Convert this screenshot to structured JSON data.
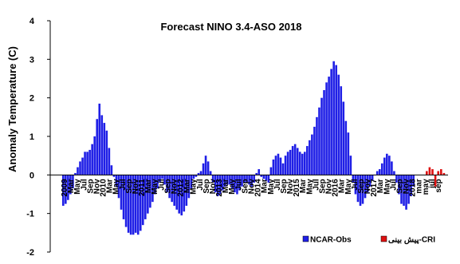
{
  "chart_data": {
    "type": "bar",
    "title": "Forecast NINO 3.4-ASO 2018",
    "xlabel": "",
    "ylabel": "Anomaly Temperature (C)",
    "ylim": [
      -2,
      4
    ],
    "yticks": [
      -2,
      -1,
      0,
      1,
      2,
      3,
      4
    ],
    "grid": false,
    "legend_position": "bottom-right",
    "colors": {
      "obs": "#1f1fe6",
      "forecast": "#dd1111",
      "obs_edge": "#0a0a8a",
      "axis": "#000000"
    },
    "x_tick_labels": [
      "2009",
      "Mar",
      "May",
      "Jul",
      "Sep",
      "Nov",
      "2010",
      "Mar",
      "May",
      "Jul",
      "Sep",
      "Nov",
      "2011",
      "Mar",
      "May",
      "Jul",
      "Sep",
      "Nov",
      "2012",
      "Mar",
      "May",
      "Jul",
      "Sep",
      "Nov",
      "2013",
      "Mar",
      "May",
      "Jul",
      "Sep",
      "Nov",
      "2014",
      "Mar",
      "May",
      "Jul",
      "Sep",
      "Nov",
      "2015",
      "Mar",
      "May",
      "Jul",
      "Sep",
      "Nov",
      "2016",
      "Mar",
      "May",
      "Jul",
      "Sep",
      "Nov",
      "2017",
      "Mar",
      "May",
      "Jul",
      "Sep",
      "Nov",
      "2018",
      "mar",
      "may",
      "jul",
      "sep"
    ],
    "series": [
      {
        "name": "NCAR-Obs",
        "values": [
          -0.8,
          -0.75,
          -0.65,
          -0.5,
          -0.35,
          0.05,
          0.2,
          0.35,
          0.45,
          0.6,
          0.6,
          0.65,
          0.8,
          1.0,
          1.45,
          1.85,
          1.55,
          1.35,
          1.15,
          0.7,
          0.25,
          -0.05,
          -0.3,
          -0.6,
          -0.9,
          -1.15,
          -1.35,
          -1.5,
          -1.55,
          -1.55,
          -1.5,
          -1.55,
          -1.45,
          -1.3,
          -1.15,
          -1.0,
          -0.85,
          -0.7,
          -0.5,
          -0.35,
          -0.2,
          -0.1,
          -0.25,
          -0.45,
          -0.6,
          -0.7,
          -0.8,
          -0.9,
          -1.0,
          -1.05,
          -0.95,
          -0.8,
          -0.6,
          -0.35,
          -0.1,
          -0.05,
          0.05,
          0.1,
          0.3,
          0.5,
          0.35,
          0.1,
          -0.2,
          -0.45,
          -0.55,
          -0.5,
          -0.4,
          -0.3,
          -0.25,
          -0.25,
          -0.35,
          -0.45,
          -0.5,
          -0.4,
          -0.3,
          -0.2,
          -0.2,
          -0.25,
          -0.3,
          -0.2,
          0.05,
          0.15,
          -0.05,
          -0.1,
          -0.15,
          -0.2,
          0.2,
          0.4,
          0.5,
          0.55,
          0.45,
          0.3,
          0.5,
          0.6,
          0.65,
          0.75,
          0.8,
          0.7,
          0.6,
          0.55,
          0.6,
          0.75,
          0.9,
          1.05,
          1.25,
          1.5,
          1.75,
          2.0,
          2.2,
          2.4,
          2.55,
          2.75,
          2.95,
          2.85,
          2.6,
          2.3,
          1.9,
          1.4,
          1.1,
          0.5,
          -0.2,
          -0.5,
          -0.7,
          -0.8,
          -0.75,
          -0.6,
          -0.45,
          -0.3,
          -0.15,
          0.0,
          0.1,
          0.15,
          0.3,
          0.45,
          0.55,
          0.5,
          0.35,
          0.1,
          -0.2,
          -0.5,
          -0.75,
          -0.8,
          -0.9,
          -0.75,
          -0.55,
          -0.3
        ]
      },
      {
        "name": "پیش بینی-CRI",
        "values": [
          0.1,
          0.2,
          0.15,
          -0.3,
          0.1,
          0.15,
          0.05
        ]
      }
    ],
    "legend": [
      {
        "label": "NCAR-Obs",
        "series": 0
      },
      {
        "label": "پیش بینی-CRI",
        "series": 1
      }
    ]
  }
}
